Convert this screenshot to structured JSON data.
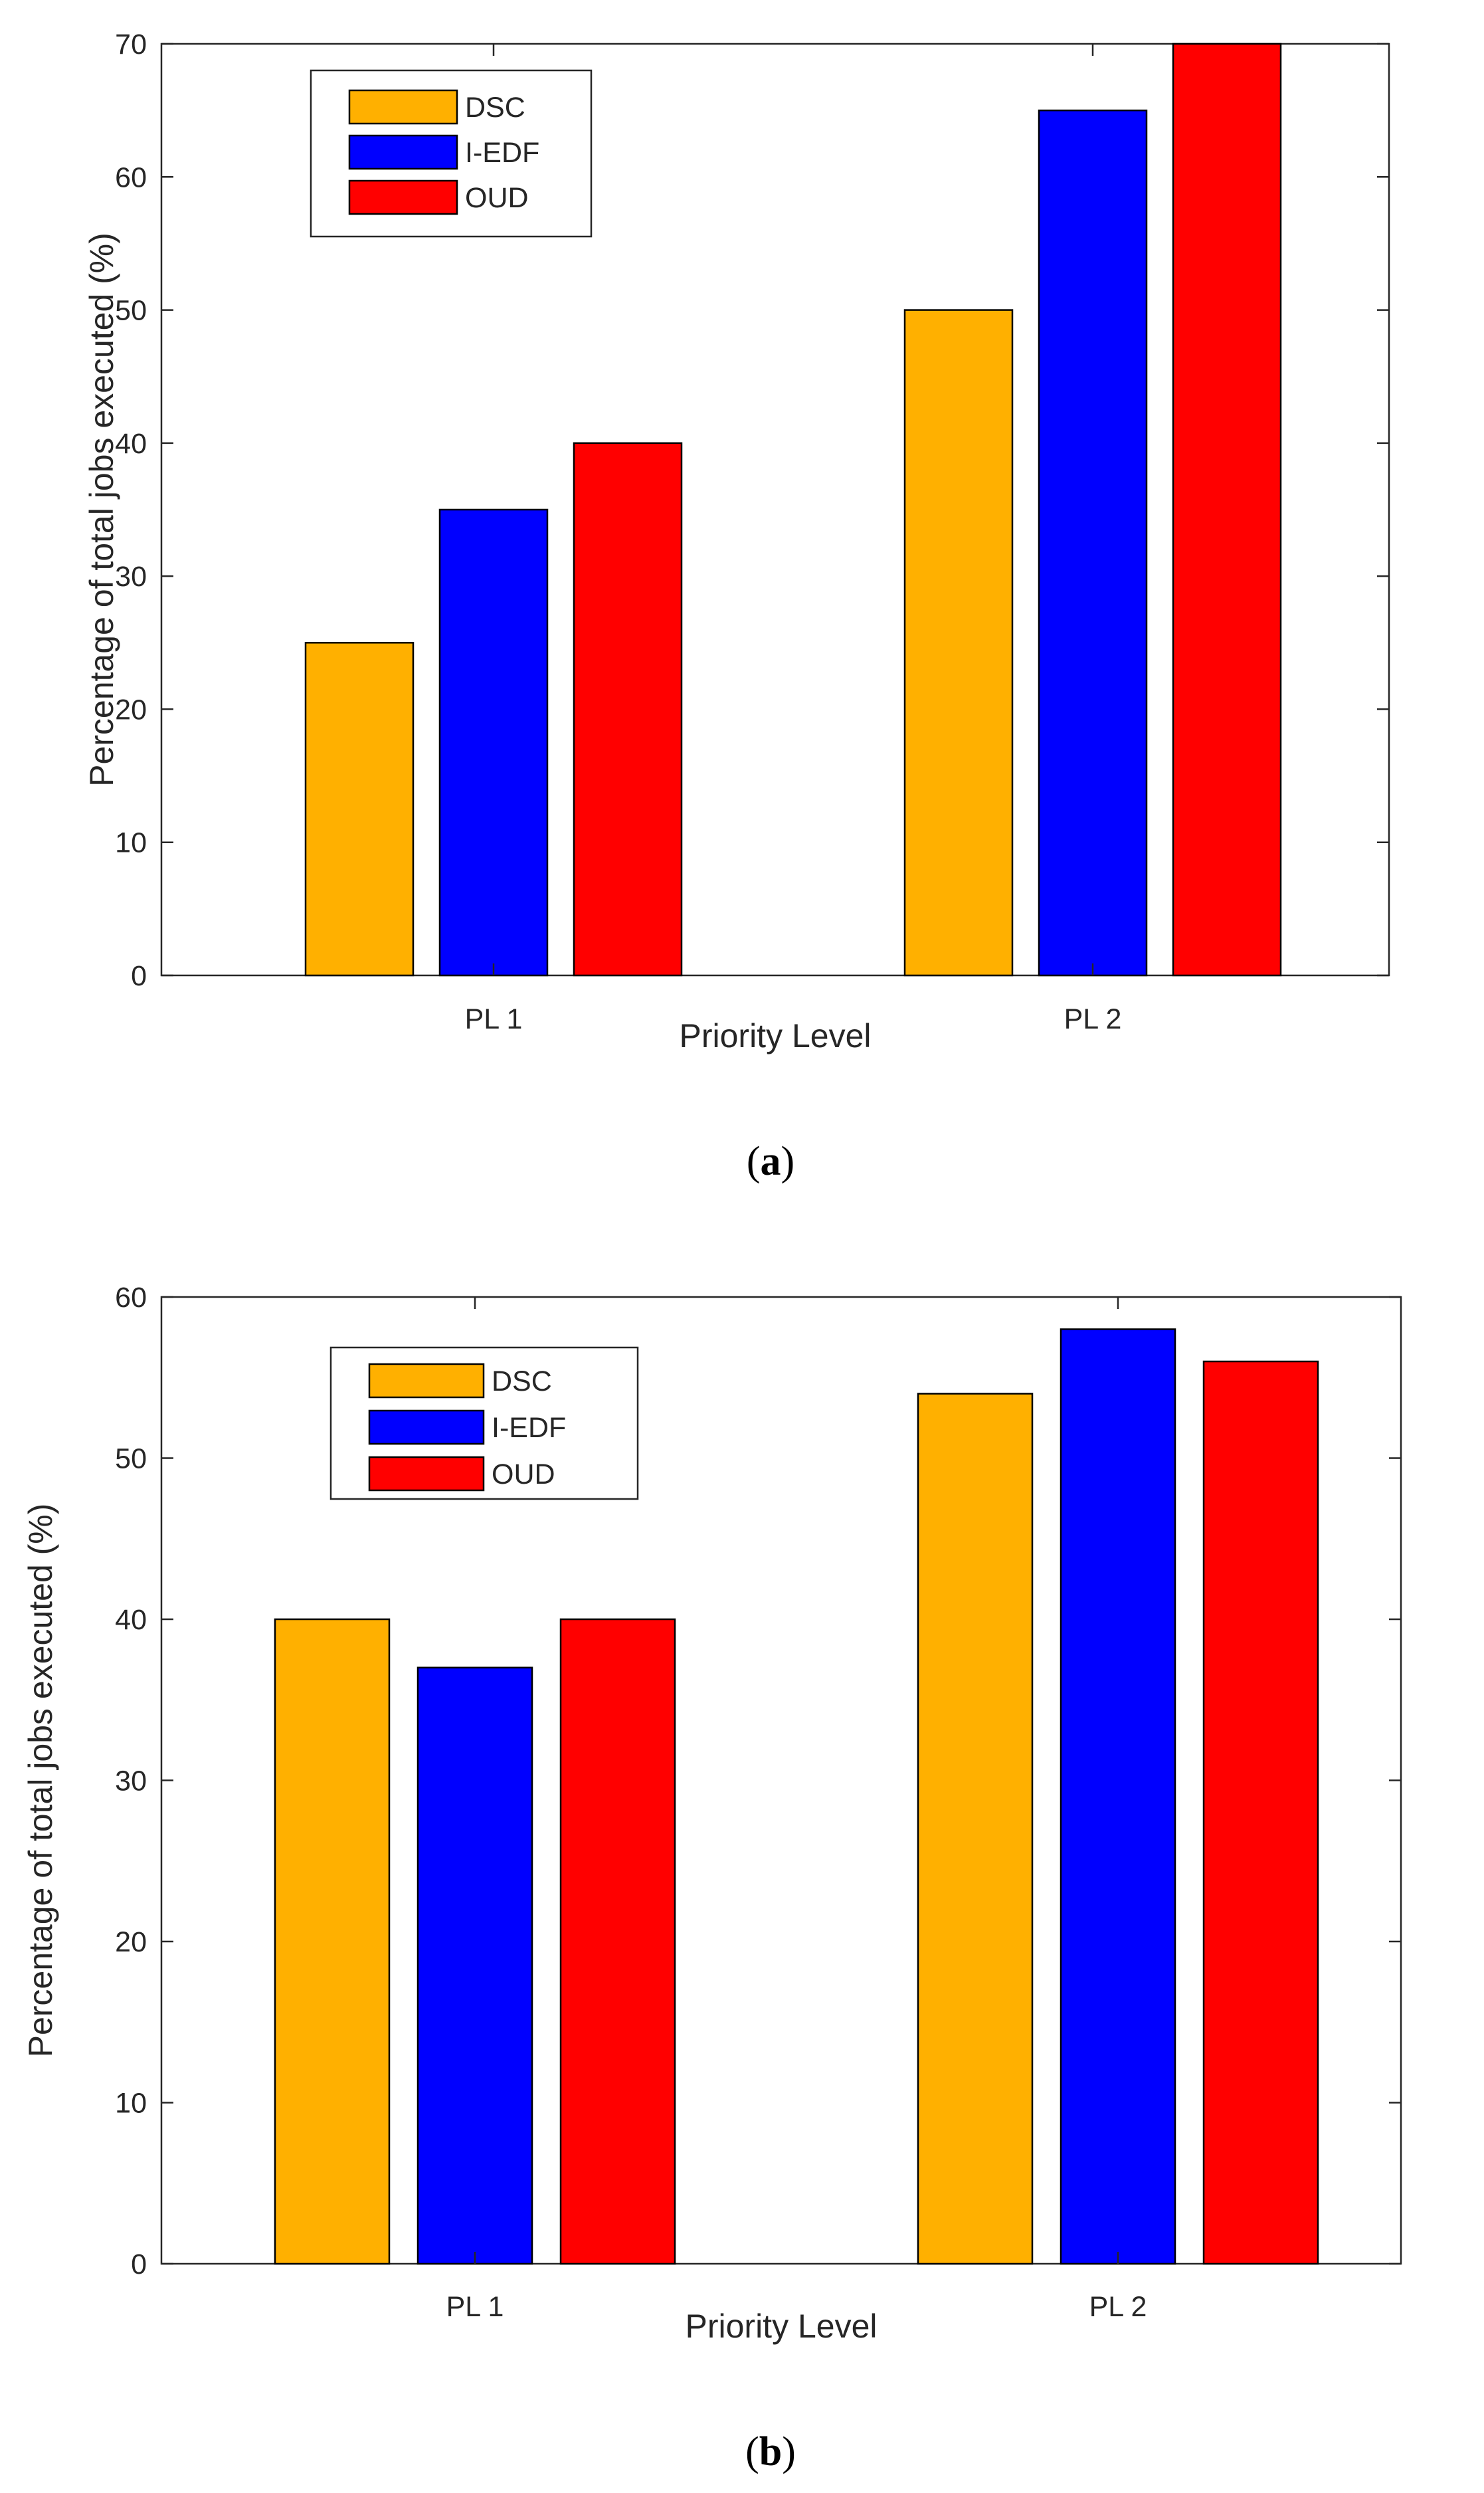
{
  "figure_labels": {
    "a_open": "(",
    "a_letter": "a",
    "a_close": ")",
    "b_open": "(",
    "b_letter": "b",
    "b_close": ")"
  },
  "colors": {
    "DSC": "#FFB000",
    "I-EDF": "#0000FF",
    "OUD": "#FF0000",
    "axis": "#262626"
  },
  "chart_data": [
    {
      "id": "a",
      "type": "bar",
      "categories": [
        "PL 1",
        "PL 2"
      ],
      "series": [
        {
          "name": "DSC",
          "values": [
            25,
            50
          ]
        },
        {
          "name": "I-EDF",
          "values": [
            35,
            65
          ]
        },
        {
          "name": "OUD",
          "values": [
            40,
            70
          ]
        }
      ],
      "title": "",
      "xlabel": "Priority Level",
      "ylabel": "Percentage of total jobs executed (%)",
      "ylim": [
        0,
        70
      ],
      "yticks": [
        0,
        10,
        20,
        30,
        40,
        50,
        60,
        70
      ],
      "grid": false,
      "legend": "top-left"
    },
    {
      "id": "b",
      "type": "bar",
      "categories": [
        "PL 1",
        "PL 2"
      ],
      "series": [
        {
          "name": "DSC",
          "values": [
            40,
            54
          ]
        },
        {
          "name": "I-EDF",
          "values": [
            37,
            58
          ]
        },
        {
          "name": "OUD",
          "values": [
            40,
            56
          ]
        }
      ],
      "title": "",
      "xlabel": "Priority Level",
      "ylabel": "Percentage of total jobs executed (%)",
      "ylim": [
        0,
        60
      ],
      "yticks": [
        0,
        10,
        20,
        30,
        40,
        50,
        60
      ],
      "grid": false,
      "legend": "top-left"
    }
  ]
}
